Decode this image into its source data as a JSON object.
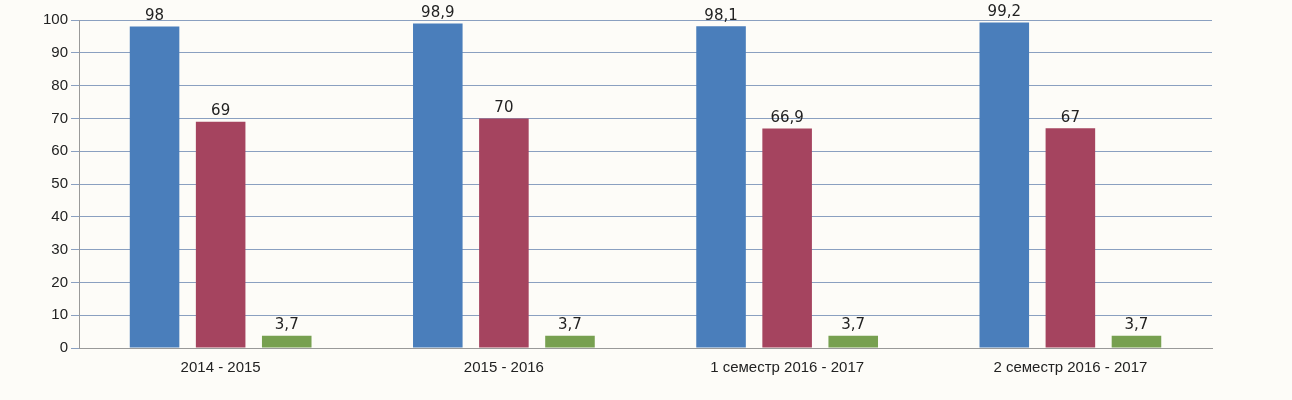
{
  "chart_data": {
    "type": "bar",
    "categories": [
      "2014 - 2015",
      "2015 - 2016",
      "1 семестр 2016 - 2017",
      "2 семестр 2016 - 2017"
    ],
    "series": [
      {
        "color": "#4a7ebb",
        "values": [
          98,
          98.9,
          98.1,
          99.2
        ],
        "value_labels": [
          "98",
          "98,9",
          "98,1",
          "99,2"
        ]
      },
      {
        "color": "#a5445f",
        "values": [
          69,
          70,
          66.9,
          67
        ],
        "value_labels": [
          "69",
          "70",
          "66,9",
          "67"
        ]
      },
      {
        "color": "#77a050",
        "values": [
          3.7,
          3.7,
          3.7,
          3.7
        ],
        "value_labels": [
          "3,7",
          "3,7",
          "3,7",
          "3,7"
        ]
      }
    ],
    "ylim": [
      0,
      100
    ],
    "yticks": [
      0,
      10,
      20,
      30,
      40,
      50,
      60,
      70,
      80,
      90,
      100
    ],
    "grid": "y",
    "legend": false
  }
}
